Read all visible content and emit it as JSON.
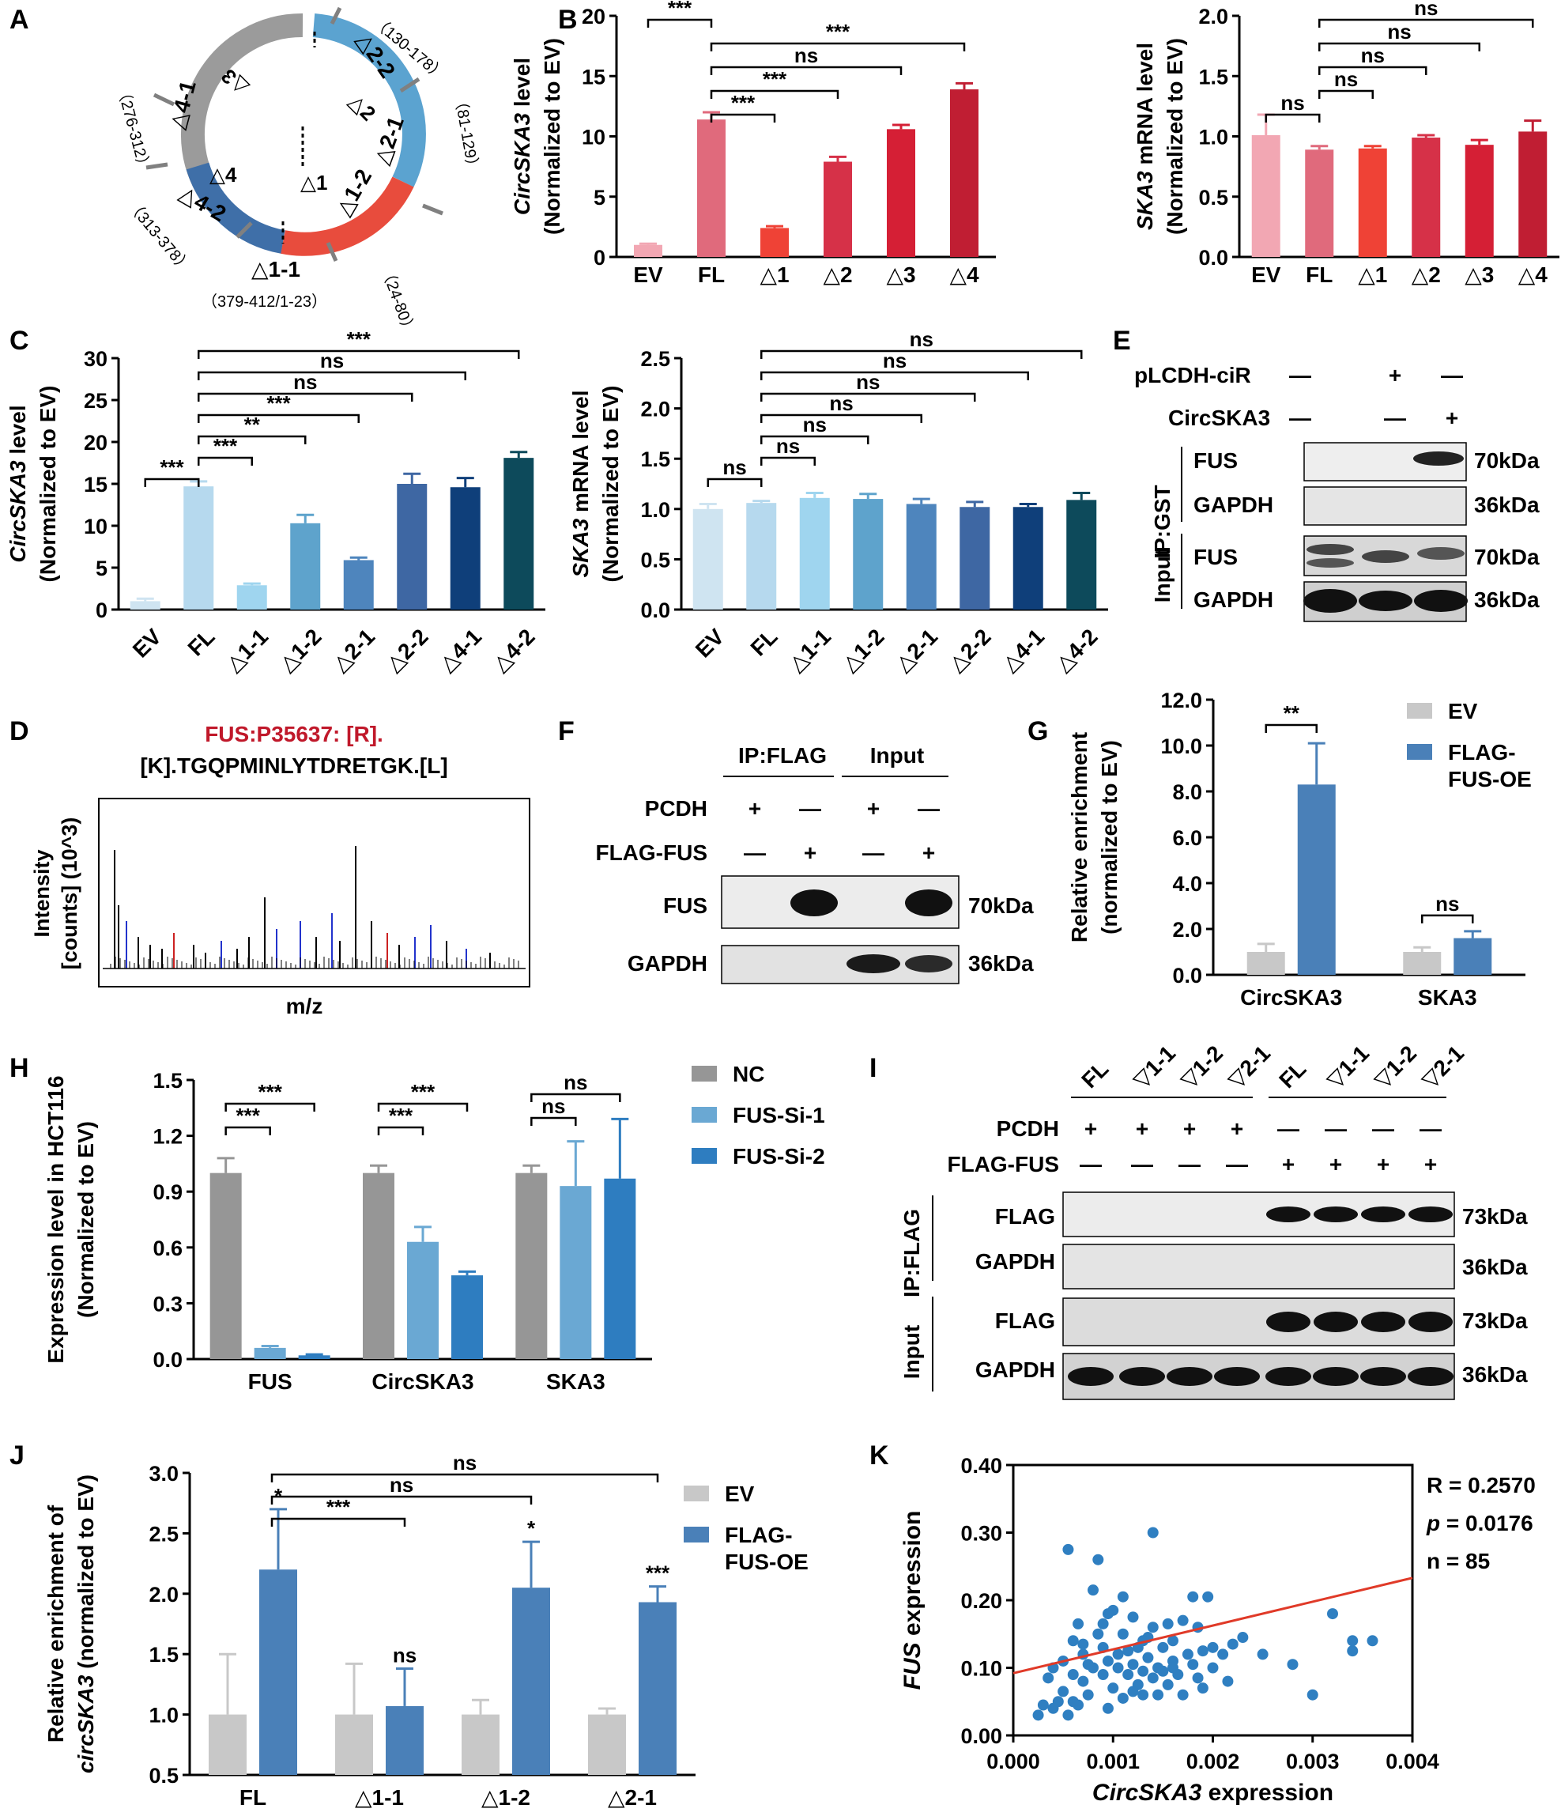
{
  "panels": {
    "A": {
      "letter": "A",
      "ring_segments": [
        "△1-1",
        "△1-2",
        "△2-1",
        "△2-2",
        "△3",
        "△4-1",
        "△4-2"
      ],
      "inner_labels": [
        "△1",
        "△2",
        "△3",
        "△4"
      ],
      "outer_labels": [
        {
          "name": "△1-1",
          "range": "（379-412/1-23）"
        },
        {
          "name": "△1-2",
          "range": "（24-80）"
        },
        {
          "name": "△2-1",
          "range": "（81-129）"
        },
        {
          "name": "△2-2",
          "range": "（130-178）"
        },
        {
          "name": "△4-1",
          "range": "（276-312）"
        },
        {
          "name": "△4-2",
          "range": "（313-378）"
        }
      ],
      "colors": {
        "red": "#e84c3d",
        "blue_light": "#5ba3d0",
        "blue_dark": "#3f6fa8",
        "gray": "#9b9b9b",
        "arrow": "#808080"
      }
    },
    "B": {
      "letter": "B"
    },
    "C": {
      "letter": "C"
    },
    "D": {
      "letter": "D",
      "title_red": "FUS:P35637: [R].",
      "title_black": "[K].TGQPMINLYTDRETGK.[L]",
      "ylabel": [
        "Intensity",
        "[counts] (10^3)"
      ],
      "xlabel": "m/z"
    },
    "E": {
      "letter": "E",
      "rows": [
        {
          "label": "pLCDH-ciR",
          "signs": [
            "—",
            "+",
            "—"
          ]
        },
        {
          "label": "CircSKA3",
          "signs": [
            "—",
            "—",
            "+"
          ]
        }
      ],
      "group_labels": [
        "IP:GST",
        "Input"
      ],
      "blot_labels": [
        "FUS",
        "GAPDH",
        "FUS",
        "GAPDH"
      ],
      "kda": [
        "70kDa",
        "36kDa",
        "70kDa",
        "36kDa"
      ]
    },
    "F": {
      "letter": "F",
      "headers": [
        "IP:FLAG",
        "Input"
      ],
      "rows": [
        {
          "label": "PCDH",
          "signs": [
            "+",
            "—",
            "+",
            "—"
          ]
        },
        {
          "label": "FLAG-FUS",
          "signs": [
            "—",
            "+",
            "—",
            "+"
          ]
        }
      ],
      "blot_labels": [
        "FUS",
        "GAPDH"
      ],
      "kda": [
        "70kDa",
        "36kDa"
      ]
    },
    "G": {
      "letter": "G"
    },
    "H": {
      "letter": "H"
    },
    "I": {
      "letter": "I",
      "lanes": [
        "FL",
        "▽1-1",
        "▽1-2",
        "▽2-1",
        "FL",
        "▽1-1",
        "▽1-2",
        "▽2-1"
      ],
      "rows": [
        {
          "label": "PCDH",
          "signs": [
            "+",
            "+",
            "+",
            "+",
            "—",
            "—",
            "—",
            "—"
          ]
        },
        {
          "label": "FLAG-FUS",
          "signs": [
            "—",
            "—",
            "—",
            "—",
            "+",
            "+",
            "+",
            "+"
          ]
        }
      ],
      "group_labels": [
        "IP:FLAG",
        "Input"
      ],
      "blot_labels": [
        "FLAG",
        "GAPDH",
        "FLAG",
        "GAPDH"
      ],
      "kda": [
        "73kDa",
        "36kDa",
        "73kDa",
        "36kDa"
      ]
    },
    "J": {
      "letter": "J"
    },
    "K": {
      "letter": "K",
      "stats": {
        "r": "R = 0.2570",
        "p_sym": "p",
        "p_val": " = 0.0176",
        "n": "n = 85"
      }
    }
  },
  "chart_data": [
    {
      "id": "B_left",
      "type": "bar",
      "categories": [
        "EV",
        "FL",
        "△1",
        "△2",
        "△3",
        "△4"
      ],
      "values": [
        1.0,
        11.4,
        2.4,
        7.9,
        10.6,
        13.9
      ],
      "errors": [
        0.1,
        0.6,
        0.15,
        0.4,
        0.35,
        0.5
      ],
      "colors": [
        "#f2a7b3",
        "#e06a7c",
        "#ef4236",
        "#d63148",
        "#d51f35",
        "#c01e33"
      ],
      "ylabel_italic": "CircSKA3",
      "ylabel_rest": " level",
      "ylabel2": "(Normalized to EV)",
      "ylim": [
        0,
        20
      ],
      "yticks": [
        0,
        5,
        10,
        15,
        20
      ],
      "brackets": [
        {
          "from": 1,
          "to": 2,
          "text": "***"
        },
        {
          "from": 1,
          "to": 3,
          "text": "***"
        },
        {
          "from": 1,
          "to": 4,
          "text": "ns"
        },
        {
          "from": 1,
          "to": 5,
          "text": "***"
        },
        {
          "from": 0,
          "to": 1,
          "text": "***"
        }
      ]
    },
    {
      "id": "B_right",
      "type": "bar",
      "categories": [
        "EV",
        "FL",
        "△1",
        "△2",
        "△3",
        "△4"
      ],
      "values": [
        1.01,
        0.89,
        0.9,
        0.99,
        0.93,
        1.04
      ],
      "errors": [
        0.17,
        0.03,
        0.02,
        0.02,
        0.04,
        0.09
      ],
      "colors": [
        "#f2a7b3",
        "#e06a7c",
        "#ef4236",
        "#d63148",
        "#d51f35",
        "#c01e33"
      ],
      "ylabel_italic": "SKA3",
      "ylabel_rest": " mRNA level",
      "ylabel2": "(Normalized to EV)",
      "ylim": [
        0,
        2.0
      ],
      "yticks": [
        "0.0",
        "0.5",
        "1.0",
        "1.5",
        "2.0"
      ],
      "brackets": [
        {
          "from": 0,
          "to": 1,
          "text": "ns"
        },
        {
          "from": 1,
          "to": 2,
          "text": "ns"
        },
        {
          "from": 1,
          "to": 3,
          "text": "ns"
        },
        {
          "from": 1,
          "to": 4,
          "text": "ns"
        },
        {
          "from": 1,
          "to": 5,
          "text": "ns"
        }
      ]
    },
    {
      "id": "C_left",
      "type": "bar",
      "categories": [
        "EV",
        "FL",
        "△1-1",
        "△1-2",
        "△2-1",
        "△2-2",
        "△4-1",
        "△4-2"
      ],
      "values": [
        1.0,
        14.7,
        2.9,
        10.3,
        5.9,
        15.0,
        14.6,
        18.1
      ],
      "errors": [
        0.3,
        0.6,
        0.2,
        1.0,
        0.3,
        1.2,
        1.1,
        0.7
      ],
      "colors": [
        "#cfe4f1",
        "#b6d9ee",
        "#9fd5ef",
        "#5ea3cc",
        "#4e85bd",
        "#3e67a3",
        "#0f3f7a",
        "#0d4a5b"
      ],
      "ylabel_italic": "CircSKA3",
      "ylabel_rest": " level",
      "ylabel2": "(Normalized to EV)",
      "ylim": [
        0,
        30
      ],
      "yticks": [
        0,
        5,
        10,
        15,
        20,
        25,
        30
      ],
      "brackets": [
        {
          "from": 0,
          "to": 1,
          "text": "***"
        },
        {
          "from": 1,
          "to": 2,
          "text": "***"
        },
        {
          "from": 1,
          "to": 3,
          "text": "**"
        },
        {
          "from": 1,
          "to": 4,
          "text": "***"
        },
        {
          "from": 1,
          "to": 5,
          "text": "ns"
        },
        {
          "from": 1,
          "to": 6,
          "text": "ns"
        },
        {
          "from": 1,
          "to": 7,
          "text": "***"
        }
      ]
    },
    {
      "id": "C_right",
      "type": "bar",
      "categories": [
        "EV",
        "FL",
        "△1-1",
        "△1-2",
        "△2-1",
        "△2-2",
        "△4-1",
        "△4-2"
      ],
      "values": [
        1.0,
        1.06,
        1.11,
        1.1,
        1.05,
        1.02,
        1.02,
        1.09
      ],
      "errors": [
        0.05,
        0.02,
        0.05,
        0.05,
        0.05,
        0.05,
        0.03,
        0.07
      ],
      "colors": [
        "#cfe4f1",
        "#b6d9ee",
        "#9fd5ef",
        "#5ea3cc",
        "#4e85bd",
        "#3e67a3",
        "#0f3f7a",
        "#0d4a5b"
      ],
      "ylabel_italic": "SKA3",
      "ylabel_rest": " mRNA level",
      "ylabel2": "(Normalized to EV)",
      "ylim": [
        0,
        2.5
      ],
      "yticks": [
        "0.0",
        "0.5",
        "1.0",
        "1.5",
        "2.0",
        "2.5"
      ],
      "brackets": [
        {
          "from": 0,
          "to": 1,
          "text": "ns"
        },
        {
          "from": 1,
          "to": 2,
          "text": "ns"
        },
        {
          "from": 1,
          "to": 3,
          "text": "ns"
        },
        {
          "from": 1,
          "to": 4,
          "text": "ns"
        },
        {
          "from": 1,
          "to": 5,
          "text": "ns"
        },
        {
          "from": 1,
          "to": 6,
          "text": "ns"
        },
        {
          "from": 1,
          "to": 7,
          "text": "ns"
        }
      ]
    },
    {
      "id": "G",
      "type": "bar",
      "categories": [
        "CircSKA3",
        "SKA3"
      ],
      "series": [
        {
          "name": "EV",
          "color": "#c8c8c8",
          "values": [
            1.0,
            1.0
          ],
          "errors": [
            0.35,
            0.2
          ]
        },
        {
          "name": "FLAG-\nFUS-OE",
          "color": "#4a80b8",
          "values": [
            8.3,
            1.6
          ],
          "errors": [
            1.8,
            0.3
          ]
        }
      ],
      "ylabel": "Relative enrichment",
      "ylabel2": "(normalized to EV)",
      "ylim": [
        0,
        12
      ],
      "yticks": [
        "0.0",
        "2.0",
        "4.0",
        "6.0",
        "8.0",
        "10.0",
        "12.0"
      ],
      "brackets": [
        {
          "group": 0,
          "text": "**"
        },
        {
          "group": 1,
          "text": "ns"
        }
      ]
    },
    {
      "id": "H",
      "type": "bar",
      "categories": [
        "FUS",
        "CircSKA3",
        "SKA3"
      ],
      "series": [
        {
          "name": "NC",
          "color": "#969696",
          "values": [
            1.0,
            1.0,
            1.0
          ],
          "errors": [
            0.08,
            0.04,
            0.04
          ]
        },
        {
          "name": "FUS-Si-1",
          "color": "#6aa8d3",
          "values": [
            0.06,
            0.63,
            0.93
          ],
          "errors": [
            0.01,
            0.08,
            0.24
          ]
        },
        {
          "name": "FUS-Si-2",
          "color": "#2e7dc0",
          "values": [
            0.02,
            0.45,
            0.97
          ],
          "errors": [
            0.005,
            0.02,
            0.32
          ]
        }
      ],
      "ylabel": "Expression level in HCT116",
      "ylabel2": "(Normalized to EV)",
      "ylim": [
        0,
        1.5
      ],
      "yticks": [
        "0.0",
        "0.3",
        "0.6",
        "0.9",
        "1.2",
        "1.5"
      ],
      "brackets": [
        {
          "group": 0,
          "from": 0,
          "to": 1,
          "text": "***"
        },
        {
          "group": 0,
          "from": 0,
          "to": 2,
          "text": "***"
        },
        {
          "group": 1,
          "from": 0,
          "to": 1,
          "text": "***"
        },
        {
          "group": 1,
          "from": 0,
          "to": 2,
          "text": "***"
        },
        {
          "group": 2,
          "from": 0,
          "to": 1,
          "text": "ns"
        },
        {
          "group": 2,
          "from": 0,
          "to": 2,
          "text": "ns"
        }
      ]
    },
    {
      "id": "J",
      "type": "bar",
      "categories": [
        "FL",
        "△1-1",
        "△1-2",
        "△2-1"
      ],
      "series": [
        {
          "name": "EV",
          "color": "#c8c8c8",
          "values": [
            1.0,
            1.0,
            1.0,
            1.0
          ],
          "errors": [
            0.5,
            0.42,
            0.12,
            0.05
          ]
        },
        {
          "name": "FLAG-\nFUS-OE",
          "color": "#4a80b8",
          "values": [
            2.2,
            1.07,
            2.05,
            1.93
          ],
          "errors": [
            0.5,
            0.31,
            0.38,
            0.13
          ]
        }
      ],
      "ylabel_line1": "Relative enrichment of",
      "ylabel_italic": "circSKA3",
      "ylabel_rest": " (normalized to EV)",
      "ylim": [
        0.5,
        3.0
      ],
      "yticks": [
        "0.5",
        "1.0",
        "1.5",
        "2.0",
        "2.5",
        "3.0"
      ],
      "marks": [
        "*",
        "ns",
        "*",
        "***"
      ],
      "brackets": [
        {
          "from": 0,
          "to": 1,
          "text": "***"
        },
        {
          "from": 0,
          "to": 2,
          "text": "ns"
        },
        {
          "from": 0,
          "to": 3,
          "text": "ns"
        }
      ]
    },
    {
      "id": "K",
      "type": "scatter",
      "xlabel_italic": "CircSKA3",
      "xlabel_rest": " expression",
      "ylabel_italic": "FUS",
      "ylabel_rest": " expression",
      "xlim": [
        0,
        0.004
      ],
      "ylim": [
        0,
        0.4
      ],
      "xticks": [
        "0.000",
        "0.001",
        "0.002",
        "0.003",
        "0.004"
      ],
      "yticks": [
        "0.00",
        "0.10",
        "0.20",
        "0.30",
        "0.40"
      ],
      "point_color": "#2f7fc1",
      "line_color": "#e03a28",
      "fit_line": {
        "x": [
          0.0,
          0.004
        ],
        "y": [
          0.092,
          0.233
        ]
      },
      "points": [
        [
          0.00025,
          0.03
        ],
        [
          0.0003,
          0.045
        ],
        [
          0.00035,
          0.085
        ],
        [
          0.0004,
          0.04
        ],
        [
          0.0004,
          0.1
        ],
        [
          0.00045,
          0.05
        ],
        [
          0.0005,
          0.065
        ],
        [
          0.0005,
          0.11
        ],
        [
          0.00055,
          0.275
        ],
        [
          0.00055,
          0.03
        ],
        [
          0.0006,
          0.14
        ],
        [
          0.0006,
          0.09
        ],
        [
          0.00065,
          0.165
        ],
        [
          0.00065,
          0.045
        ],
        [
          0.0007,
          0.12
        ],
        [
          0.0007,
          0.08
        ],
        [
          0.00075,
          0.105
        ],
        [
          0.00075,
          0.06
        ],
        [
          0.0008,
          0.215
        ],
        [
          0.0008,
          0.1
        ],
        [
          0.00085,
          0.26
        ],
        [
          0.00085,
          0.15
        ],
        [
          0.0009,
          0.13
        ],
        [
          0.0009,
          0.09
        ],
        [
          0.00095,
          0.11
        ],
        [
          0.00095,
          0.04
        ],
        [
          0.001,
          0.185
        ],
        [
          0.001,
          0.07
        ],
        [
          0.00105,
          0.12
        ],
        [
          0.00105,
          0.1
        ],
        [
          0.0011,
          0.15
        ],
        [
          0.0011,
          0.055
        ],
        [
          0.00115,
          0.125
        ],
        [
          0.00115,
          0.09
        ],
        [
          0.0012,
          0.175
        ],
        [
          0.0012,
          0.105
        ],
        [
          0.00125,
          0.075
        ],
        [
          0.00125,
          0.13
        ],
        [
          0.0013,
          0.095
        ],
        [
          0.0013,
          0.06
        ],
        [
          0.00135,
          0.115
        ],
        [
          0.00135,
          0.145
        ],
        [
          0.0014,
          0.3
        ],
        [
          0.0014,
          0.085
        ],
        [
          0.00145,
          0.1
        ],
        [
          0.00145,
          0.06
        ],
        [
          0.0015,
          0.13
        ],
        [
          0.0015,
          0.095
        ],
        [
          0.00155,
          0.165
        ],
        [
          0.00155,
          0.075
        ],
        [
          0.0016,
          0.11
        ],
        [
          0.0016,
          0.14
        ],
        [
          0.00165,
          0.09
        ],
        [
          0.0017,
          0.17
        ],
        [
          0.0017,
          0.06
        ],
        [
          0.00175,
          0.12
        ],
        [
          0.0018,
          0.105
        ],
        [
          0.0018,
          0.205
        ],
        [
          0.00185,
          0.085
        ],
        [
          0.0019,
          0.125
        ],
        [
          0.0019,
          0.07
        ],
        [
          0.00195,
          0.205
        ],
        [
          0.002,
          0.1
        ],
        [
          0.002,
          0.13
        ],
        [
          0.0021,
          0.12
        ],
        [
          0.00215,
          0.08
        ],
        [
          0.0022,
          0.135
        ],
        [
          0.0023,
          0.145
        ],
        [
          0.0025,
          0.12
        ],
        [
          0.0028,
          0.105
        ],
        [
          0.003,
          0.06
        ],
        [
          0.0032,
          0.18
        ],
        [
          0.0034,
          0.125
        ],
        [
          0.0034,
          0.14
        ],
        [
          0.0036,
          0.14
        ],
        [
          0.00095,
          0.18
        ],
        [
          0.0012,
          0.065
        ],
        [
          0.0007,
          0.135
        ],
        [
          0.0011,
          0.205
        ],
        [
          0.0014,
          0.16
        ],
        [
          0.0006,
          0.05
        ],
        [
          0.0016,
          0.1
        ],
        [
          0.0013,
          0.14
        ],
        [
          0.0009,
          0.165
        ],
        [
          0.00185,
          0.16
        ]
      ]
    }
  ]
}
